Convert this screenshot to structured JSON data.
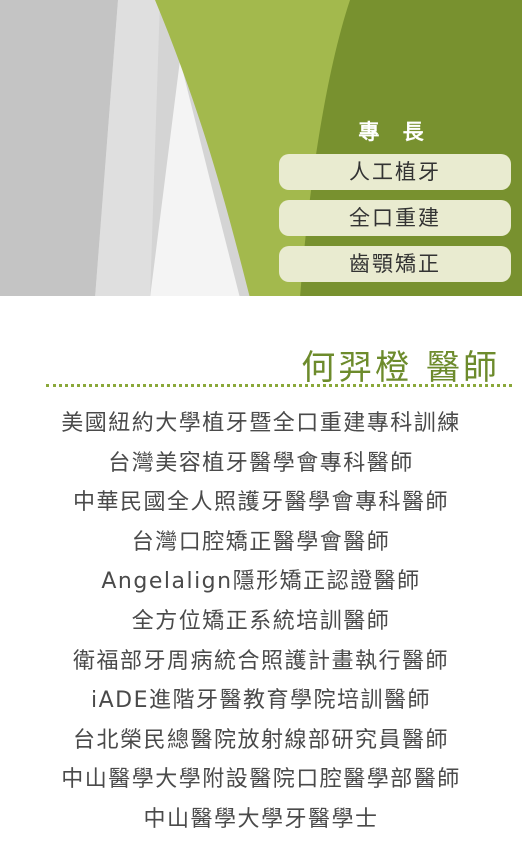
{
  "colors": {
    "accent_green": "#78912f",
    "light_green": "#a3b94d",
    "pill_bg": "#e9ebd0",
    "name_green": "#6d8b2c",
    "body_text": "#4a4a4a"
  },
  "specialties": {
    "heading": "專 長",
    "items": [
      "人工植牙",
      "全口重建",
      "齒顎矯正"
    ]
  },
  "doctor": {
    "name": "何羿橙  醫師"
  },
  "credentials": [
    "美國紐約大學植牙暨全口重建專科訓練",
    "台灣美容植牙醫學會專科醫師",
    "中華民國全人照護牙醫學會專科醫師",
    "台灣口腔矯正醫學會醫師",
    "Angelalign隱形矯正認證醫師",
    "全方位矯正系統培訓醫師",
    "衛福部牙周病統合照護計畫執行醫師",
    "iADE進階牙醫教育學院培訓醫師",
    "台北榮民總醫院放射線部研究員醫師",
    "中山醫學大學附設醫院口腔醫學部醫師",
    "中山醫學大學牙醫學士"
  ]
}
